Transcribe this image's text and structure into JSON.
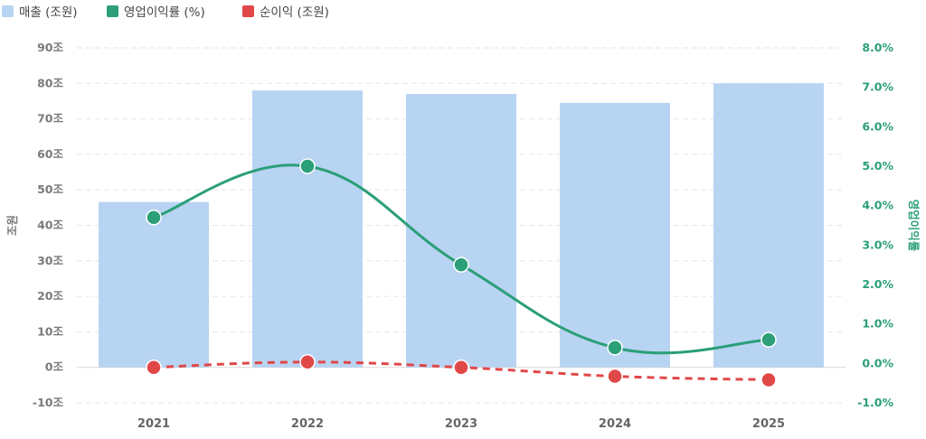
{
  "chart_data": {
    "type": "bar",
    "categories": [
      "2021",
      "2022",
      "2023",
      "2024",
      "2025"
    ],
    "series": [
      {
        "name": "매출 (조원)",
        "type": "bar",
        "axis": "left",
        "color": "#b8d4f3",
        "values": [
          46.6,
          78.0,
          77.0,
          74.5,
          80.0
        ]
      },
      {
        "name": "영업이익률 (%)",
        "type": "line",
        "axis": "right",
        "color": "#2b9f77",
        "style": "solid",
        "values": [
          3.7,
          5.0,
          2.5,
          0.4,
          0.6
        ]
      },
      {
        "name": "순이익 (조원)",
        "type": "line",
        "axis": "left",
        "color": "#e04848",
        "style": "dashed",
        "values": [
          0.0,
          1.5,
          0.0,
          -2.5,
          -3.5
        ]
      }
    ],
    "yleft": {
      "label": "조원",
      "ylim": [
        -10,
        90
      ],
      "ticks": [
        -10,
        0,
        10,
        20,
        30,
        40,
        50,
        60,
        70,
        80,
        90
      ],
      "tick_labels": [
        "-10조",
        "0조",
        "10조",
        "20조",
        "30조",
        "40조",
        "50조",
        "60조",
        "70조",
        "80조",
        "90조"
      ]
    },
    "yright": {
      "label": "영업이익률",
      "ylim": [
        -1,
        8
      ],
      "ticks": [
        -1,
        0,
        1,
        2,
        3,
        4,
        5,
        6,
        7,
        8
      ],
      "tick_labels": [
        "-1.0%",
        "0.0%",
        "1.0%",
        "2.0%",
        "3.0%",
        "4.0%",
        "5.0%",
        "6.0%",
        "7.0%",
        "8.0%"
      ]
    },
    "grid": true,
    "legend": "top-left"
  }
}
